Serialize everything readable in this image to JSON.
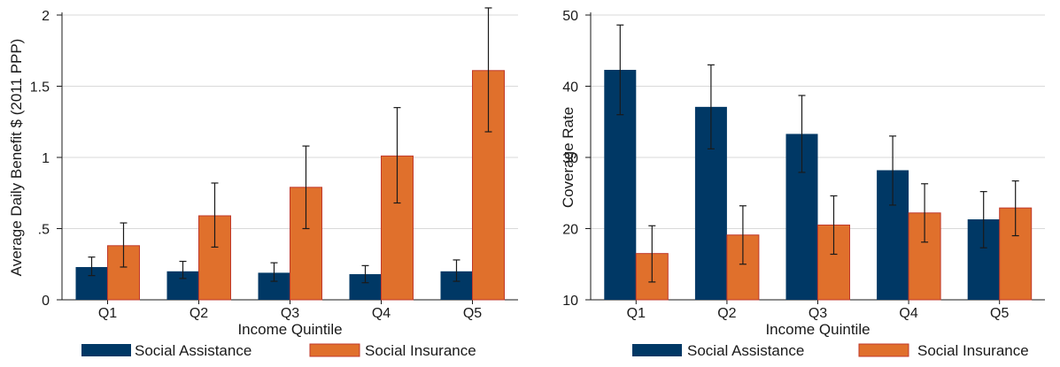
{
  "colors": {
    "social_assistance": "#003865",
    "social_insurance": "#e0702c",
    "social_insurance_stroke": "#c0392b",
    "grid": "#d9d9d9",
    "axis": "#1a1a1a",
    "error_bar": "#1a1a1a"
  },
  "chart_data": [
    {
      "type": "bar",
      "categories": [
        "Q1",
        "Q2",
        "Q3",
        "Q4",
        "Q5"
      ],
      "xlabel": "Income Quintile",
      "ylabel": "Average Daily Benefit $ (2011 PPP)",
      "ylim": [
        0,
        2
      ],
      "yticks": [
        0,
        0.5,
        1,
        1.5,
        2
      ],
      "ytick_labels": [
        "0",
        ".5",
        "1",
        "1.5",
        "2"
      ],
      "grid": true,
      "legend_position": "bottom",
      "series": [
        {
          "name": "Social Assistance",
          "color": "#003865",
          "values": [
            0.23,
            0.2,
            0.19,
            0.18,
            0.2
          ],
          "error_low": [
            0.17,
            0.15,
            0.13,
            0.12,
            0.13
          ],
          "error_high": [
            0.3,
            0.27,
            0.26,
            0.24,
            0.28
          ]
        },
        {
          "name": "Social Insurance",
          "color": "#e0702c",
          "values": [
            0.38,
            0.59,
            0.79,
            1.01,
            1.61
          ],
          "error_low": [
            0.23,
            0.37,
            0.5,
            0.68,
            1.18
          ],
          "error_high": [
            0.54,
            0.82,
            1.08,
            1.35,
            2.05
          ]
        }
      ]
    },
    {
      "type": "bar",
      "categories": [
        "Q1",
        "Q2",
        "Q3",
        "Q4",
        "Q5"
      ],
      "xlabel": "Income Quintile",
      "ylabel": "Coverage Rate",
      "ylim": [
        10,
        50
      ],
      "yticks": [
        10,
        20,
        30,
        40,
        50
      ],
      "ytick_labels": [
        "10",
        "20",
        "30",
        "40",
        "50"
      ],
      "grid": true,
      "legend_position": "bottom",
      "series": [
        {
          "name": "Social Assistance",
          "color": "#003865",
          "values": [
            42.3,
            37.1,
            33.3,
            28.2,
            21.3
          ],
          "error_low": [
            36.0,
            31.2,
            27.9,
            23.3,
            17.3
          ],
          "error_high": [
            48.6,
            43.0,
            38.7,
            33.0,
            25.2
          ]
        },
        {
          "name": "Social Insurance",
          "color": "#e0702c",
          "values": [
            16.5,
            19.1,
            20.5,
            22.2,
            22.9
          ],
          "error_low": [
            12.5,
            15.0,
            16.4,
            18.1,
            19.0
          ],
          "error_high": [
            20.4,
            23.2,
            24.6,
            26.3,
            26.7
          ]
        }
      ]
    }
  ]
}
